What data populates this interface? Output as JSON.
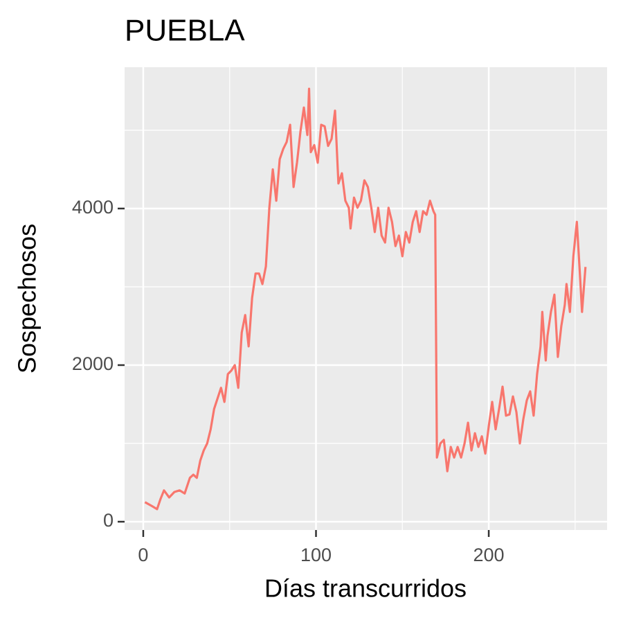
{
  "chart_data": {
    "type": "line",
    "title": "PUEBLA",
    "x_label": "Días transcurridos",
    "y_label": "Sospechosos",
    "x": [
      1,
      5,
      8,
      10,
      12,
      15,
      18,
      21,
      24,
      27,
      29,
      31,
      33,
      35,
      37,
      39,
      41,
      43,
      45,
      47,
      49,
      51,
      53,
      55,
      57,
      59,
      61,
      63,
      65,
      67,
      69,
      71,
      73,
      75,
      77,
      79,
      81,
      83,
      85,
      87,
      89,
      91,
      93,
      95,
      96,
      97,
      99,
      101,
      103,
      105,
      107,
      109,
      111,
      113,
      115,
      117,
      119,
      120,
      122,
      124,
      126,
      128,
      130,
      132,
      134,
      136,
      138,
      140,
      142,
      144,
      146,
      148,
      150,
      152,
      154,
      156,
      158,
      160,
      162,
      164,
      166,
      168,
      169,
      170,
      172,
      174,
      176,
      178,
      180,
      182,
      184,
      186,
      188,
      190,
      192,
      194,
      196,
      198,
      200,
      202,
      204,
      206,
      208,
      210,
      212,
      214,
      216,
      218,
      220,
      222,
      224,
      226,
      228,
      230,
      231,
      233,
      234,
      236,
      238,
      240,
      242,
      244,
      245,
      247,
      249,
      251,
      253,
      254,
      256
    ],
    "series": [
      {
        "name": "Sospechosos",
        "color": "#F8766D",
        "values": [
          250,
          200,
          160,
          290,
          400,
          310,
          380,
          400,
          360,
          560,
          600,
          560,
          780,
          910,
          1000,
          1180,
          1440,
          1575,
          1710,
          1530,
          1885,
          1930,
          2000,
          1710,
          2415,
          2640,
          2240,
          2860,
          3170,
          3170,
          3035,
          3260,
          4010,
          4500,
          4100,
          4630,
          4760,
          4850,
          5070,
          4275,
          4590,
          4980,
          5290,
          4940,
          5530,
          4720,
          4810,
          4585,
          5070,
          5050,
          4800,
          4890,
          5250,
          4320,
          4450,
          4100,
          4010,
          3745,
          4140,
          4010,
          4100,
          4360,
          4275,
          4010,
          3700,
          4010,
          3655,
          3565,
          4010,
          3830,
          3520,
          3655,
          3390,
          3700,
          3565,
          3830,
          3965,
          3700,
          3965,
          3920,
          4100,
          3965,
          3920,
          820,
          1000,
          1045,
          645,
          955,
          820,
          955,
          820,
          1000,
          1265,
          910,
          1130,
          955,
          1090,
          870,
          1220,
          1530,
          1180,
          1440,
          1725,
          1355,
          1370,
          1600,
          1400,
          1000,
          1310,
          1550,
          1665,
          1355,
          1885,
          2240,
          2680,
          2060,
          2370,
          2680,
          2900,
          2105,
          2500,
          2770,
          3035,
          2680,
          3390,
          3830,
          3080,
          2680,
          3255
        ]
      }
    ],
    "xlim": [
      -10.8,
      268.5
    ],
    "xticks": [
      0,
      100,
      200
    ],
    "xminor": [
      50,
      150,
      250
    ],
    "ylim": [
      -106,
      5805
    ],
    "yticks": [
      0,
      2000,
      4000
    ],
    "yminor": [
      1000,
      3000,
      5000
    ],
    "grid": true
  }
}
